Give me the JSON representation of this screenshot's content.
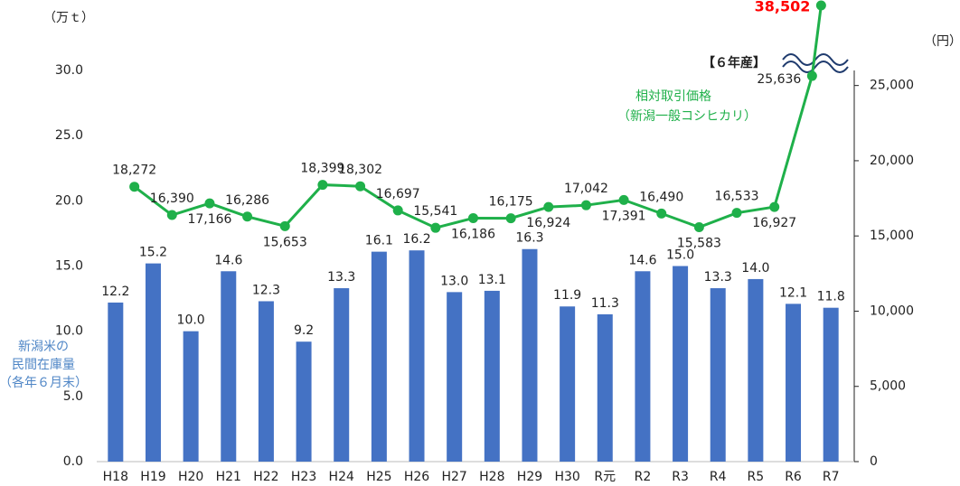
{
  "chart_data": {
    "type": "bar_line",
    "y_unit": "（万ｔ）",
    "y2_unit": "（円）",
    "y_label": [
      "新潟米の",
      "民間在庫量",
      "（各年６月末）"
    ],
    "categories": [
      "H18",
      "H19",
      "H20",
      "H21",
      "H22",
      "H23",
      "H24",
      "H25",
      "H26",
      "H27",
      "H28",
      "H29",
      "H30",
      "R元",
      "R2",
      "R3",
      "R4",
      "R5",
      "R6",
      "R7"
    ],
    "series": [
      {
        "type": "bar",
        "color": "#4472c4",
        "label_color": "#222222",
        "values": [
          12.2,
          15.2,
          10.0,
          14.6,
          12.3,
          9.2,
          13.3,
          16.1,
          16.2,
          13.0,
          13.1,
          16.3,
          11.9,
          11.3,
          14.6,
          15.0,
          13.3,
          14.0,
          12.1,
          11.8
        ],
        "value_labels": [
          "12.2",
          "15.2",
          "10.0",
          "14.6",
          "12.3",
          "9.2",
          "13.3",
          "16.1",
          "16.2",
          "13.0",
          "13.1",
          "16.3",
          "11.9",
          "11.3",
          "14.6",
          "15.0",
          "13.3",
          "14.0",
          "12.1",
          "11.8"
        ]
      },
      {
        "type": "line",
        "axis": "y2",
        "name": "相対取引価格",
        "color": "#1fb04a",
        "values": [
          18272,
          16390,
          17166,
          16286,
          15653,
          18399,
          18302,
          16697,
          15541,
          16186,
          16175,
          16924,
          17042,
          17391,
          16490,
          15583,
          16533,
          16927,
          25636,
          38502
        ],
        "value_labels": [
          "18,272",
          "16,390",
          "17,166",
          "16,286",
          "15,653",
          "18,399",
          "18,302",
          "16,697",
          "15,541",
          "16,186",
          "16,175",
          "16,924",
          "17,042",
          "17,391",
          "16,490",
          "15,583",
          "16,533",
          "16,927",
          "25,636",
          "38,502"
        ]
      }
    ],
    "annotations": [
      "（新潟一般コシヒカリ）",
      "【６年産】"
    ],
    "highlight_color": "#ff0000",
    "ylim": [
      0,
      30
    ],
    "yticks": [
      {
        "value": 0,
        "label": "0.0"
      },
      {
        "value": 5,
        "label": "5.0"
      },
      {
        "value": 10,
        "label": "10.0"
      },
      {
        "value": 15,
        "label": "15.0"
      },
      {
        "value": 20,
        "label": "20.0"
      },
      {
        "value": 25,
        "label": "25.0"
      },
      {
        "value": 30,
        "label": "30.0"
      }
    ],
    "y2lim": [
      0,
      26000
    ],
    "y2ticks": [
      0,
      {
        "value": 5000,
        "label": "5,000"
      },
      {
        "value": 10000,
        "label": "10,000"
      },
      {
        "value": 15000,
        "label": "15,000"
      },
      {
        "value": 20000,
        "label": "20,000"
      },
      {
        "value": 25000,
        "label": "25,000"
      }
    ],
    "y2_break": true
  }
}
